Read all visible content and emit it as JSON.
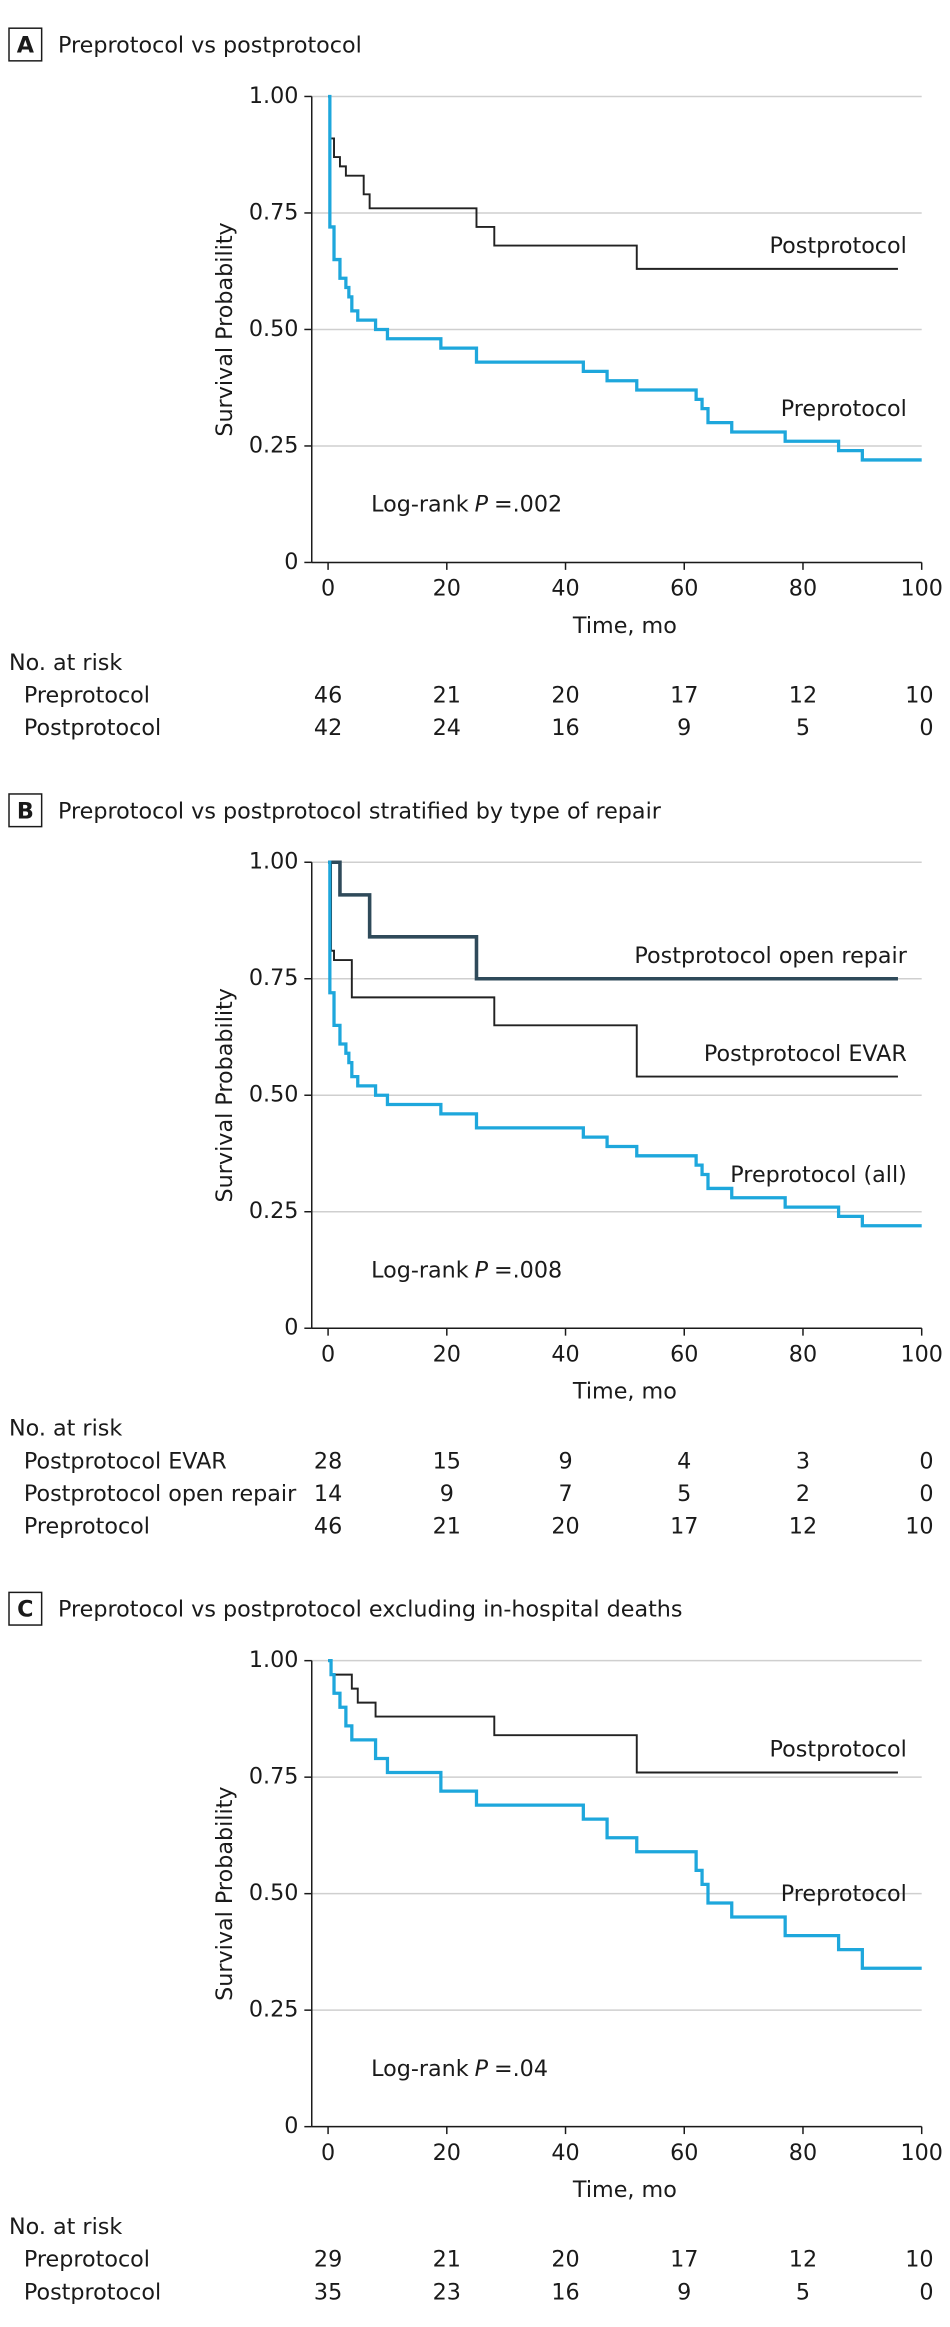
{
  "chart_data": [
    {
      "type": "line",
      "panel": "A",
      "title": "Preprotocol vs postprotocol",
      "xlabel": "Time, mo",
      "ylabel": "Survival Probability",
      "annotation": [
        "Log-rank",
        "P",
        "=.002"
      ],
      "xlim": [
        0,
        100
      ],
      "xticks": [
        0,
        20,
        40,
        60,
        80,
        100
      ],
      "ylim": [
        0,
        1
      ],
      "yticks": [
        0,
        {
          "value": 0.25,
          "label": "0.25"
        },
        {
          "value": 0.5,
          "label": "0.50"
        },
        {
          "value": 0.75,
          "label": "0.75"
        },
        {
          "value": 1,
          "label": "1.00"
        }
      ],
      "grid": true,
      "series": [
        {
          "name": "Postprotocol",
          "color": "#222222",
          "x": [
            0,
            0.3,
            1,
            2,
            3,
            6,
            7,
            25,
            28,
            52,
            96
          ],
          "values": [
            1,
            0.91,
            0.87,
            0.85,
            0.83,
            0.79,
            0.76,
            0.72,
            0.68,
            0.63,
            0.63
          ]
        },
        {
          "name": "Preprotocol",
          "color": "#1ea7dc",
          "x": [
            0,
            0.3,
            1,
            2,
            3,
            3.5,
            4,
            5,
            8,
            10,
            19,
            25,
            43,
            47,
            52,
            62,
            63,
            64,
            68,
            77,
            86,
            90,
            100
          ],
          "values": [
            1,
            0.72,
            0.65,
            0.61,
            0.59,
            0.57,
            0.54,
            0.52,
            0.5,
            0.48,
            0.46,
            0.43,
            0.41,
            0.39,
            0.37,
            0.35,
            0.33,
            0.3,
            0.28,
            0.26,
            0.24,
            0.22,
            0.22
          ]
        }
      ],
      "risk_table": {
        "title": "No. at risk",
        "rows": [
          {
            "name": "Preprotocol",
            "values": [
              46,
              21,
              20,
              17,
              12,
              10
            ]
          },
          {
            "name": "Postprotocol",
            "values": [
              42,
              24,
              16,
              9,
              5,
              0
            ]
          }
        ]
      }
    },
    {
      "type": "line",
      "panel": "B",
      "title": "Preprotocol vs postprotocol stratified by type of repair",
      "xlabel": "Time, mo",
      "ylabel": "Survival Probability",
      "annotation": [
        "Log-rank",
        "P",
        "=.008"
      ],
      "xlim": [
        0,
        100
      ],
      "xticks": [
        0,
        20,
        40,
        60,
        80,
        100
      ],
      "ylim": [
        0,
        1
      ],
      "yticks": [
        0,
        {
          "value": 0.25,
          "label": "0.25"
        },
        {
          "value": 0.5,
          "label": "0.50"
        },
        {
          "value": 0.75,
          "label": "0.75"
        },
        {
          "value": 1,
          "label": "1.00"
        }
      ],
      "grid": true,
      "series": [
        {
          "name": "Postprotocol open repair",
          "color": "#2f4a5a",
          "x": [
            0,
            2,
            7,
            25,
            96
          ],
          "values": [
            1,
            0.93,
            0.84,
            0.75,
            0.75
          ]
        },
        {
          "name": "Postprotocol EVAR",
          "color": "#222222",
          "x": [
            0,
            0.5,
            1,
            4,
            28,
            52,
            96
          ],
          "values": [
            1,
            0.81,
            0.79,
            0.71,
            0.65,
            0.54,
            0.54
          ]
        },
        {
          "name": "Preprotocol (all)",
          "color": "#1ea7dc",
          "x": [
            0,
            0.3,
            1,
            2,
            3,
            3.5,
            4,
            5,
            8,
            10,
            19,
            25,
            43,
            47,
            52,
            62,
            63,
            64,
            68,
            77,
            86,
            90,
            100
          ],
          "values": [
            1,
            0.72,
            0.65,
            0.61,
            0.59,
            0.57,
            0.54,
            0.52,
            0.5,
            0.48,
            0.46,
            0.43,
            0.41,
            0.39,
            0.37,
            0.35,
            0.33,
            0.3,
            0.28,
            0.26,
            0.24,
            0.22,
            0.22
          ]
        }
      ],
      "risk_table": {
        "title": "No. at risk",
        "rows": [
          {
            "name": "Postprotocol EVAR",
            "values": [
              28,
              15,
              9,
              4,
              3,
              0
            ]
          },
          {
            "name": "Postprotocol open repair",
            "values": [
              14,
              9,
              7,
              5,
              2,
              0
            ]
          },
          {
            "name": "Preprotocol",
            "values": [
              46,
              21,
              20,
              17,
              12,
              10
            ]
          }
        ]
      }
    },
    {
      "type": "line",
      "panel": "C",
      "title": "Preprotocol vs postprotocol excluding in-hospital deaths",
      "xlabel": "Time, mo",
      "ylabel": "Survival Probability",
      "annotation": [
        "Log-rank",
        "P",
        "=.04"
      ],
      "xlim": [
        0,
        100
      ],
      "xticks": [
        0,
        20,
        40,
        60,
        80,
        100
      ],
      "ylim": [
        0,
        1
      ],
      "yticks": [
        0,
        {
          "value": 0.25,
          "label": "0.25"
        },
        {
          "value": 0.5,
          "label": "0.50"
        },
        {
          "value": 0.75,
          "label": "0.75"
        },
        {
          "value": 1,
          "label": "1.00"
        }
      ],
      "grid": true,
      "series": [
        {
          "name": "Postprotocol",
          "color": "#222222",
          "x": [
            0,
            0.5,
            4,
            5,
            8,
            28,
            52,
            96
          ],
          "values": [
            1,
            0.97,
            0.94,
            0.91,
            0.88,
            0.84,
            0.76,
            0.76
          ]
        },
        {
          "name": "Preprotocol",
          "color": "#1ea7dc",
          "x": [
            0,
            0.5,
            1,
            2,
            3,
            4,
            8,
            10,
            19,
            25,
            43,
            47,
            52,
            62,
            63,
            64,
            68,
            77,
            86,
            90,
            100
          ],
          "values": [
            1,
            0.97,
            0.93,
            0.9,
            0.86,
            0.83,
            0.79,
            0.76,
            0.72,
            0.69,
            0.66,
            0.62,
            0.59,
            0.55,
            0.52,
            0.48,
            0.45,
            0.41,
            0.38,
            0.34,
            0.34
          ]
        }
      ],
      "risk_table": {
        "title": "No. at risk",
        "rows": [
          {
            "name": "Preprotocol",
            "values": [
              29,
              21,
              20,
              17,
              12,
              10
            ]
          },
          {
            "name": "Postprotocol",
            "values": [
              35,
              23,
              16,
              9,
              5,
              0
            ]
          }
        ]
      }
    }
  ]
}
